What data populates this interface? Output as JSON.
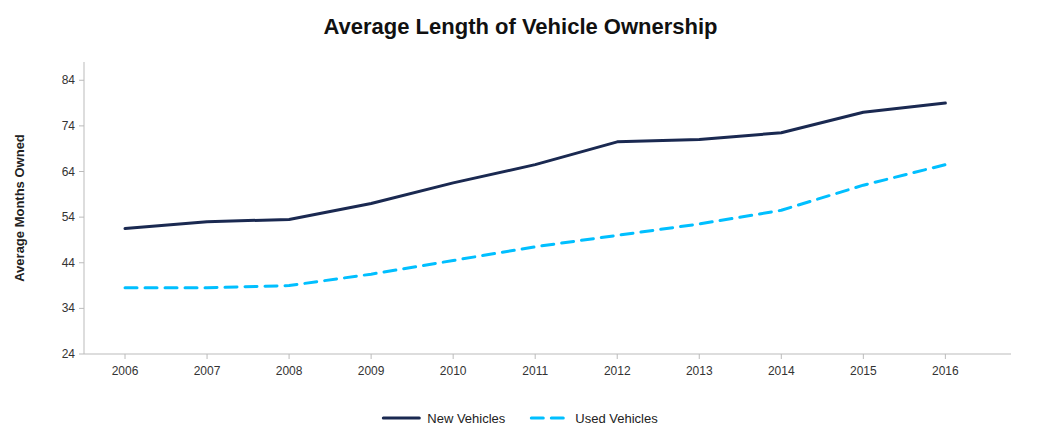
{
  "chart_data": {
    "type": "line",
    "title": "Average Length of Vehicle Ownership",
    "ylabel": "Average Months Owned",
    "x": [
      2006,
      2007,
      2008,
      2009,
      2010,
      2011,
      2012,
      2013,
      2014,
      2015,
      2016
    ],
    "series": [
      {
        "name": "New Vehicles",
        "color": "#1a2951",
        "line_style": "solid",
        "values": [
          51.5,
          53.0,
          53.5,
          57.0,
          61.5,
          65.5,
          70.5,
          71.0,
          72.5,
          77.0,
          79.0
        ]
      },
      {
        "name": "Used Vehicles",
        "color": "#00bfff",
        "line_style": "dashed",
        "values": [
          38.5,
          38.5,
          39.0,
          41.5,
          44.5,
          47.5,
          50.0,
          52.5,
          55.5,
          61.0,
          65.5
        ]
      }
    ],
    "xlim": [
      2005.5,
      2016.8
    ],
    "xticks": [
      2006,
      2007,
      2008,
      2009,
      2010,
      2011,
      2012,
      2013,
      2014,
      2015,
      2016
    ],
    "ylim": [
      24,
      88
    ],
    "yticks": [
      24,
      34,
      44,
      54,
      64,
      74,
      84
    ],
    "grid": false,
    "legend": "bottom"
  }
}
